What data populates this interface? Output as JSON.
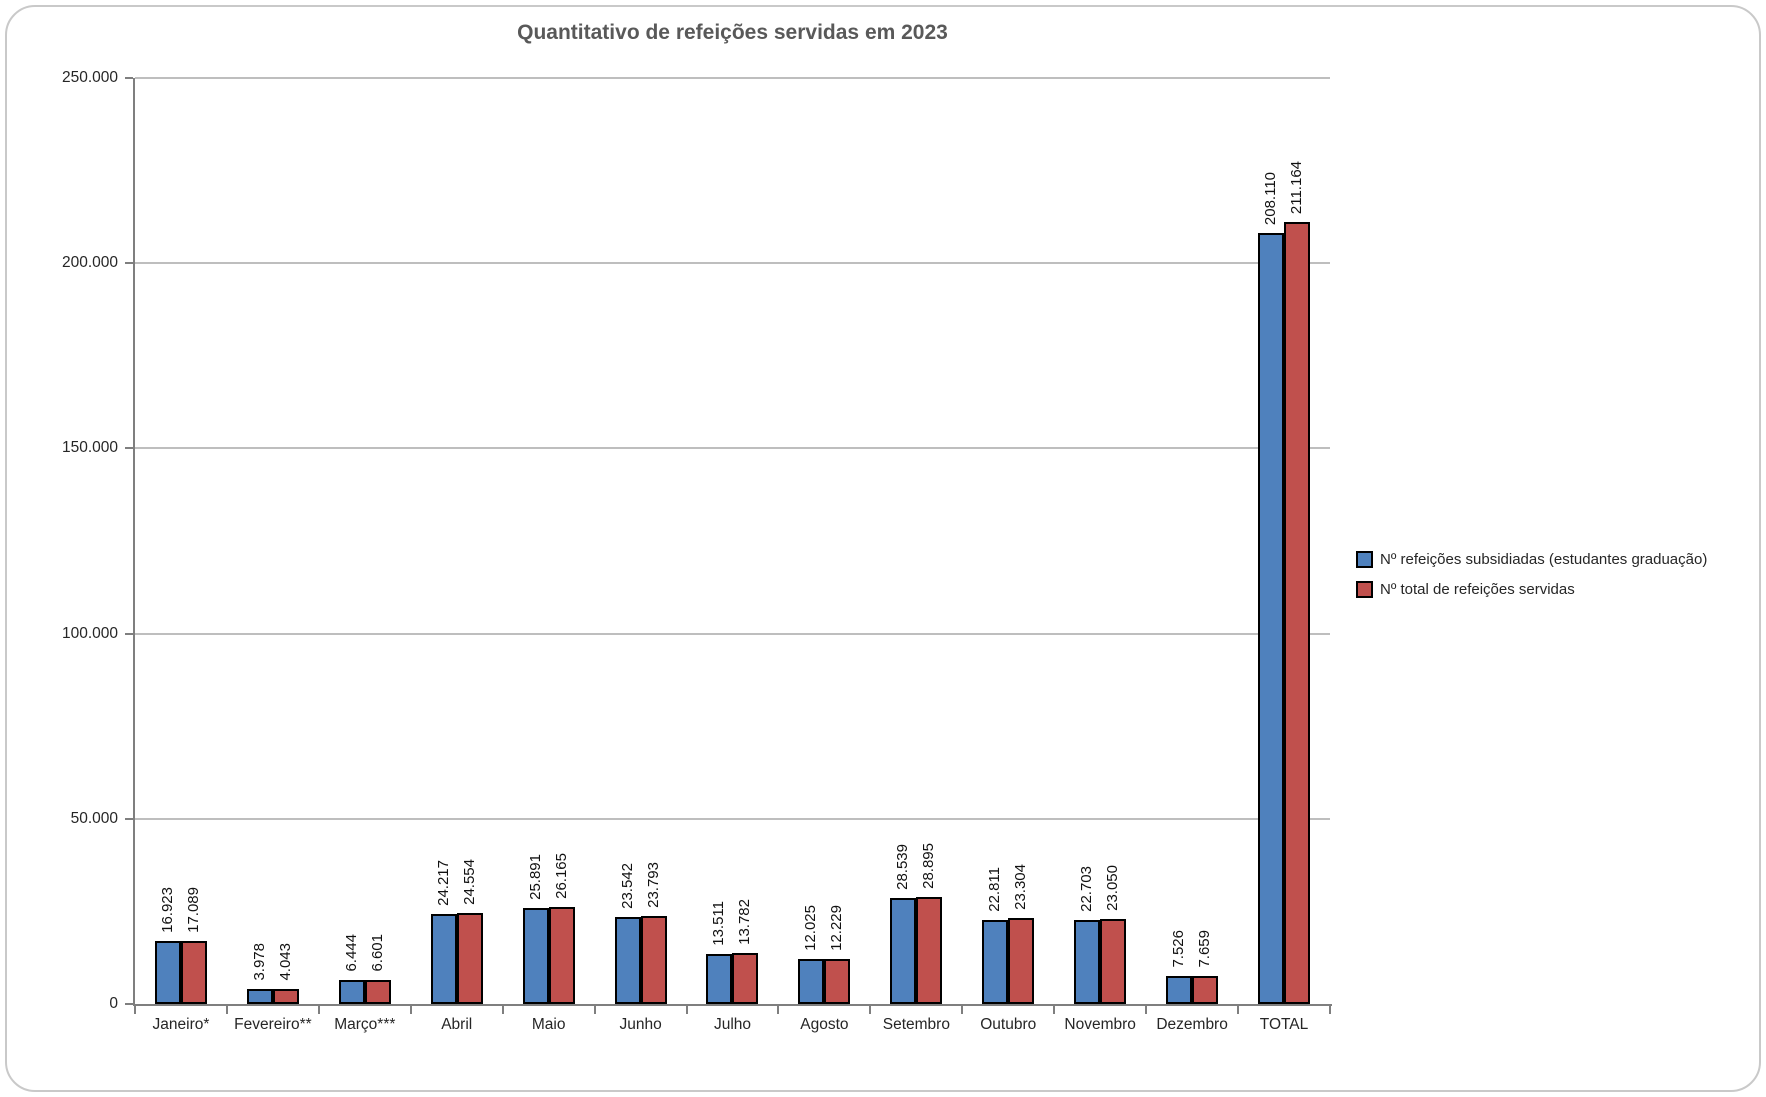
{
  "title": "Quantitativo de refeições servidas em 2023",
  "chart_data": {
    "type": "bar",
    "title": "Quantitativo de refeições servidas em 2023",
    "categories": [
      "Janeiro*",
      "Fevereiro**",
      "Março***",
      "Abril",
      "Maio",
      "Junho",
      "Julho",
      "Agosto",
      "Setembro",
      "Outubro",
      "Novembro",
      "Dezembro",
      "TOTAL"
    ],
    "series": [
      {
        "name": "Nº refeições subsidiadas (estudantes graduação)",
        "color": "#4F81BD",
        "values": [
          16923,
          3978,
          6444,
          24217,
          25891,
          23542,
          13511,
          12025,
          28539,
          22811,
          22703,
          7526,
          208110
        ],
        "data_labels": [
          "16.923",
          "3.978",
          "6.444",
          "24.217",
          "25.891",
          "23.542",
          "13.511",
          "12.025",
          "28.539",
          "22.811",
          "22.703",
          "7.526",
          "208.110"
        ]
      },
      {
        "name": "Nº total de refeições servidas",
        "color": "#C0504D",
        "values": [
          17089,
          4043,
          6601,
          24554,
          26165,
          23793,
          13782,
          12229,
          28895,
          23304,
          23050,
          7659,
          211164
        ],
        "data_labels": [
          "17.089",
          "4.043",
          "6.601",
          "24.554",
          "26.165",
          "23.793",
          "13.782",
          "12.229",
          "28.895",
          "23.304",
          "23.050",
          "7.659",
          "211.164"
        ]
      }
    ],
    "xlabel": "",
    "ylabel": "",
    "ylim": [
      0,
      250000
    ],
    "ytick_step": 50000,
    "ytick_labels": [
      "0",
      "50.000",
      "100.000",
      "150.000",
      "200.000",
      "250.000"
    ],
    "grid": true,
    "legend_position": "right",
    "data_label_orientation": "vertical-rotated-90",
    "bar_outline_color": "#000000"
  },
  "colors": {
    "series1": "#4F81BD",
    "series2": "#C0504D",
    "title_text": "#595959",
    "axis_line": "#7F7F7F",
    "gridline": "#BEBEBE",
    "frame_border": "#C9C9C9"
  }
}
